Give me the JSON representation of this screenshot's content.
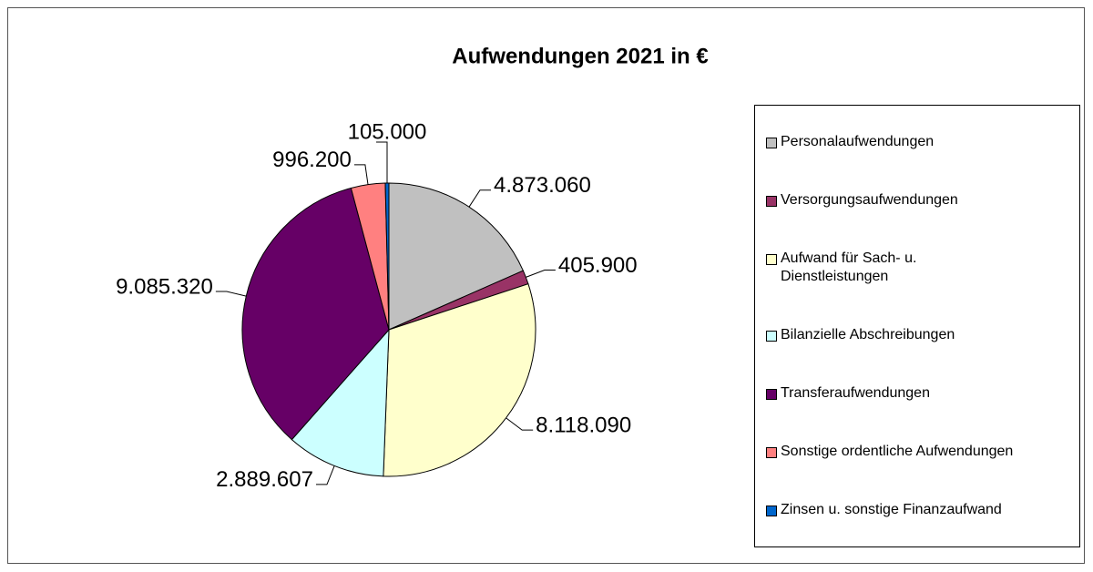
{
  "chart_data": {
    "type": "pie",
    "title": "Aufwendungen 2021 in €",
    "categories": [
      "Personalaufwendungen",
      "Versorgungsaufwendungen",
      "Aufwand für Sach- u. Dienstleistungen",
      "Bilanzielle Abschreibungen",
      "Transferaufwendungen",
      "Sonstige ordentliche Aufwendungen",
      "Zinsen u. sonstige Finanzaufwand"
    ],
    "values": [
      4873060,
      405900,
      8118090,
      2889607,
      9085320,
      996200,
      105000
    ],
    "value_labels": [
      "4.873.060",
      "405.900",
      "8.118.090",
      "2.889.607",
      "9.085.320",
      "996.200",
      "105.000"
    ],
    "colors": [
      "#c0c0c0",
      "#993366",
      "#ffffcc",
      "#ccffff",
      "#660066",
      "#ff8080",
      "#0066cc"
    ],
    "legend": "right"
  }
}
